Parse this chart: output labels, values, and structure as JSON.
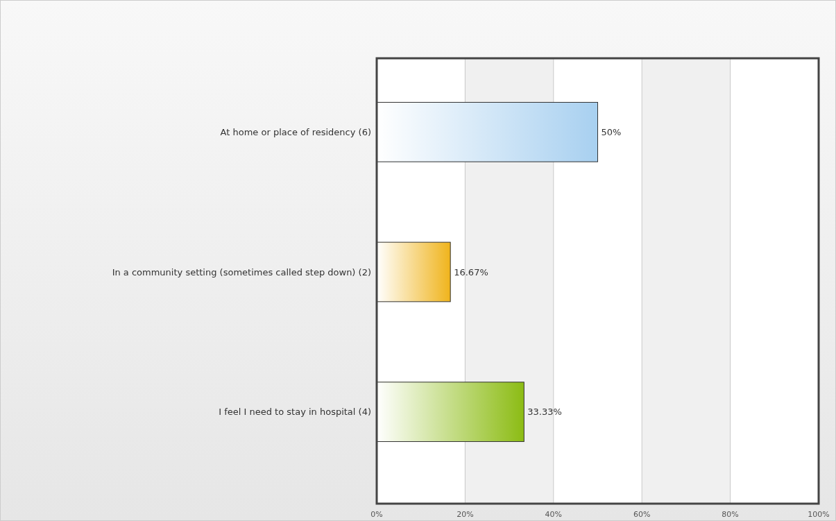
{
  "chart_data": {
    "type": "bar",
    "orientation": "horizontal",
    "categories": [
      "At home or place of residency (6)",
      "In a community setting (sometimes called step down) (2)",
      "I feel I need to stay in hospital (4)"
    ],
    "values": [
      50,
      16.67,
      33.33
    ],
    "colors": [
      "#a8d0f0",
      "#f0b41c",
      "#8cbc14"
    ],
    "value_labels": [
      "50%",
      "16.67%",
      "33.33%"
    ],
    "xlim": [
      0,
      100
    ],
    "xticks": [
      {
        "value": 0,
        "label": "0%"
      },
      {
        "value": 20,
        "label": "20%"
      },
      {
        "value": 40,
        "label": "40%"
      },
      {
        "value": 60,
        "label": "60%"
      },
      {
        "value": 80,
        "label": "80%"
      },
      {
        "value": 100,
        "label": "100%"
      }
    ],
    "grid": "x"
  }
}
